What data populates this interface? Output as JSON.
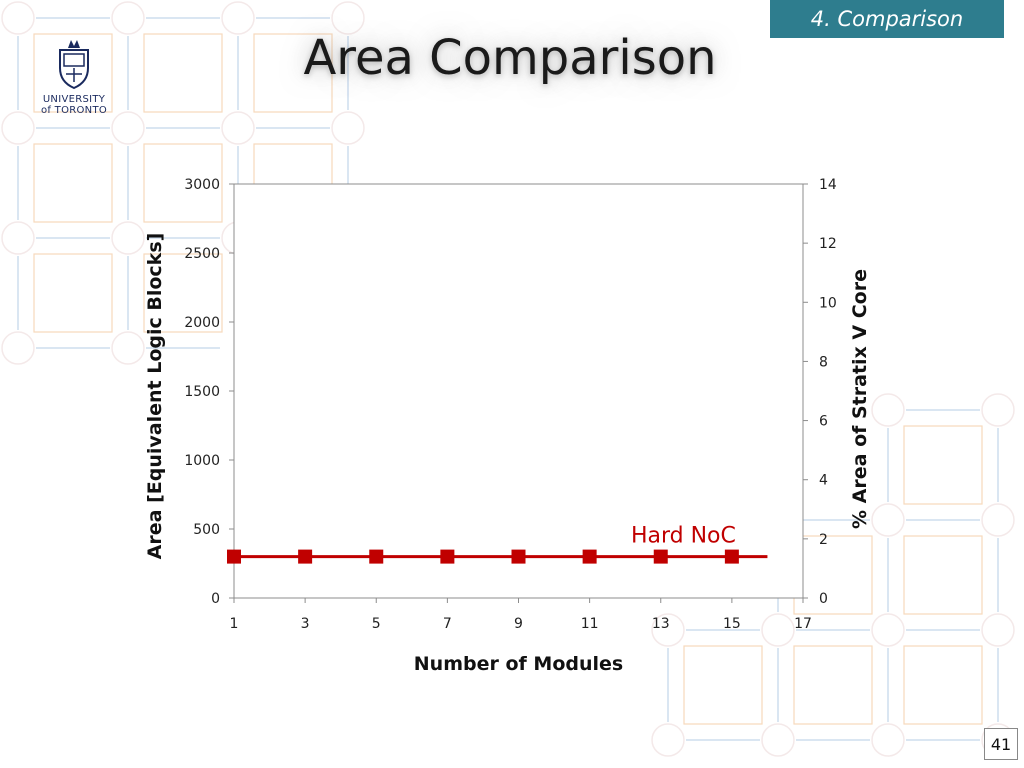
{
  "section_tag": "4. Comparison",
  "logo": {
    "line1": "UNIVERSITY",
    "line2": "of TORONTO"
  },
  "title": "Area Comparison",
  "page_number": "41",
  "colors": {
    "series": "#c00000",
    "section_tag_bg": "#2e7d8e",
    "grid_blue": "#b8cfe8",
    "grid_orange": "#f5c9a0"
  },
  "chart_data": {
    "type": "line",
    "title": "",
    "xlabel": "Number of Modules",
    "ylabel": "Area [Equivalent Logic Blocks]",
    "y2label": "% Area of Stratix V Core",
    "xlim": [
      1,
      17
    ],
    "ylim": [
      0,
      3000
    ],
    "y2lim": [
      0,
      14
    ],
    "x_ticks": [
      1,
      3,
      5,
      7,
      9,
      11,
      13,
      15,
      17
    ],
    "y_ticks": [
      0,
      500,
      1000,
      1500,
      2000,
      2500,
      3000
    ],
    "y2_ticks": [
      0,
      2,
      4,
      6,
      8,
      10,
      12,
      14
    ],
    "grid": false,
    "series": [
      {
        "name": "Hard NoC",
        "color": "#c00000",
        "marker": "square",
        "x": [
          1,
          3,
          5,
          7,
          9,
          11,
          13,
          15
        ],
        "y": [
          300,
          300,
          300,
          300,
          300,
          300,
          300,
          300
        ],
        "line_x": [
          1,
          16
        ],
        "line_y": [
          300,
          300
        ]
      }
    ]
  }
}
